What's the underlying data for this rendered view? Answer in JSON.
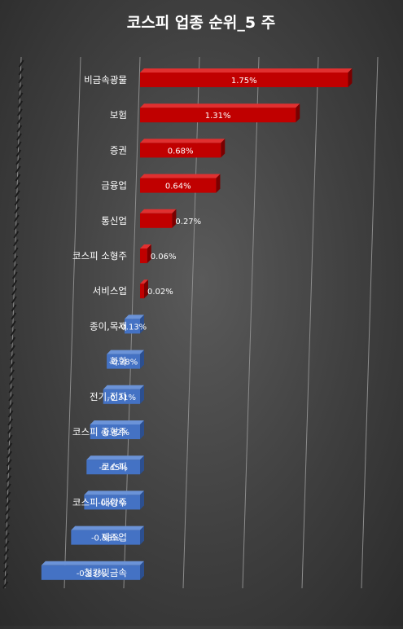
{
  "chart_data": {
    "type": "bar",
    "orientation": "horizontal",
    "title": "코스피 업종 순위_5 주",
    "categories": [
      "비금속광물",
      "보험",
      "증권",
      "금융업",
      "통신업",
      "코스피 소형주",
      "서비스업",
      "종이,목재",
      "화학",
      "전기,전자",
      "코스피 중형주",
      "코스피",
      "코스피 대형주",
      "제조업",
      "철강및금속"
    ],
    "values": [
      1.75,
      1.31,
      0.68,
      0.64,
      0.27,
      0.06,
      0.02,
      -0.13,
      -0.28,
      -0.31,
      -0.42,
      -0.45,
      -0.47,
      -0.58,
      -0.83
    ],
    "labels": [
      "1.75%",
      "1.31%",
      "0.68%",
      "0.64%",
      "0.27%",
      "0.06%",
      "0.02%",
      "-0.13%",
      "-0.28%",
      "-0.31%",
      "-0.42%",
      "-0.45%",
      "-0.47%",
      "-0.58%",
      "-0.83%"
    ],
    "xlim": [
      -1.0,
      2.0
    ],
    "grid": true,
    "legend": "none",
    "colors": {
      "positive": "#c00000",
      "negative": "#4472c4",
      "grid": "#8c8c8c",
      "text": "#ffffff"
    }
  }
}
